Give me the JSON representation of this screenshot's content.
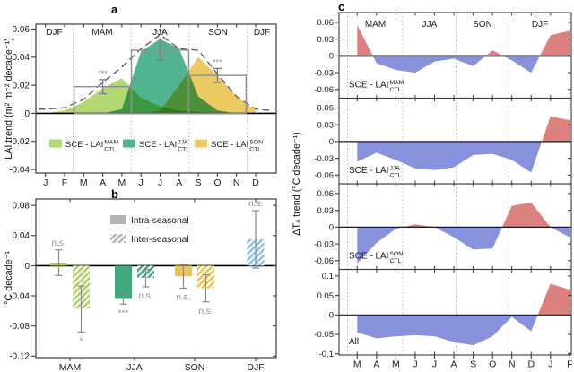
{
  "figure": {
    "panel_letters": {
      "a": "a",
      "b": "b",
      "c": "c"
    },
    "colors": {
      "green": "#a9d25e",
      "teal": "#3fa97c",
      "yellow": "#edc34c",
      "blue": "#90c0ea",
      "area_green": "#b4d871",
      "area_teal": "#51b490",
      "area_yellow": "#eaca61",
      "red": "#dc817e",
      "periwinkle": "#8791dc"
    }
  },
  "chart_data": [
    {
      "panel": "a",
      "type": "area",
      "ylabel": "LAI trend (m² m⁻² decade⁻¹)",
      "x_tick_labels": [
        "J",
        "F",
        "M",
        "A",
        "M",
        "J",
        "J",
        "A",
        "S",
        "O",
        "N",
        "D"
      ],
      "season_labels": [
        "DJF",
        "MAM",
        "JJA",
        "SON",
        "DJF"
      ],
      "yticks": [
        -0.04,
        -0.02,
        0,
        0.02,
        0.04,
        0.06
      ],
      "ylim": [
        -0.0425,
        0.0635
      ],
      "dashed_series": {
        "name": "monthly LAI trend",
        "values": [
          0.003,
          0.004,
          0.01,
          0.022,
          0.033,
          0.046,
          0.056,
          0.046,
          0.045,
          0.028,
          0.012,
          0.003
        ]
      },
      "areas": [
        {
          "legend": {
            "prefix": "SCE - LAI",
            "sup": "MAM",
            "sub": "CTL"
          },
          "color_key": "area_green",
          "values": [
            0,
            0.002,
            0.008,
            0.018,
            0.025,
            0.011,
            0.005,
            0.002,
            0.001,
            0,
            0,
            0
          ]
        },
        {
          "legend": {
            "prefix": "SCE - LAI",
            "sup": "JJA",
            "sub": "CTL"
          },
          "color_key": "area_teal",
          "values": [
            0,
            0,
            0,
            0,
            0.003,
            0.044,
            0.053,
            0.046,
            0.012,
            0.002,
            0,
            0
          ]
        },
        {
          "legend": {
            "prefix": "SCE - LAI",
            "sup": "SON",
            "sub": "CTL"
          },
          "color_key": "area_yellow",
          "values": [
            0,
            0,
            0,
            0,
            0,
            0,
            0.002,
            0.02,
            0.04,
            0.027,
            0.012,
            0.002
          ]
        }
      ],
      "bars": [
        {
          "season": "MAM",
          "month_span": [
            2,
            4
          ],
          "value": 0.019,
          "err": [
            0.014,
            0.024
          ],
          "sig": "***"
        },
        {
          "season": "JJA",
          "month_span": [
            5,
            7
          ],
          "value": 0.045,
          "err": [
            0.038,
            0.053
          ],
          "sig": "***"
        },
        {
          "season": "SON",
          "month_span": [
            8,
            10
          ],
          "value": 0.027,
          "err": [
            0.022,
            0.032
          ],
          "sig": "***"
        }
      ]
    },
    {
      "panel": "b",
      "type": "bar",
      "ylabel": "°C decade⁻¹",
      "categories": [
        "MAM",
        "JJA",
        "SON",
        "DJF"
      ],
      "yticks": [
        -0.12,
        -0.08,
        -0.04,
        0,
        0.04,
        0.08
      ],
      "ylim": [
        -0.122,
        0.0885
      ],
      "legend": [
        {
          "label": "Intra-seasonal",
          "hatched": false
        },
        {
          "label": "Inter-seasonal",
          "hatched": true
        }
      ],
      "bars": [
        {
          "category": "MAM",
          "type": "intra",
          "color_key": "green",
          "value": 0.004,
          "err": [
            -0.013,
            0.021
          ],
          "sig": "n.s.",
          "sig_side": "above"
        },
        {
          "category": "MAM",
          "type": "inter",
          "color_key": "green",
          "value": -0.057,
          "err": [
            -0.088,
            -0.027
          ],
          "sig": "*",
          "sig_side": "below"
        },
        {
          "category": "JJA",
          "type": "intra",
          "color_key": "teal",
          "value": -0.044,
          "err": [
            -0.051,
            -0.036
          ],
          "sig": "***",
          "sig_side": "below"
        },
        {
          "category": "JJA",
          "type": "inter",
          "color_key": "teal",
          "value": -0.016,
          "err": [
            -0.028,
            -0.005
          ],
          "sig": "n.s.",
          "sig_side": "below"
        },
        {
          "category": "SON",
          "type": "intra",
          "color_key": "yellow",
          "value": -0.014,
          "err": [
            -0.03,
            0.002
          ],
          "sig": "n.s.",
          "sig_side": "below"
        },
        {
          "category": "SON",
          "type": "inter",
          "color_key": "yellow",
          "value": -0.03,
          "err": [
            -0.048,
            -0.012
          ],
          "sig": "n.s.",
          "sig_side": "below"
        },
        {
          "category": "DJF",
          "type": "inter",
          "color_key": "blue",
          "value": 0.035,
          "err": [
            -0.003,
            0.073
          ],
          "sig": "n.s.",
          "sig_side": "above"
        }
      ]
    },
    {
      "panel": "c",
      "type": "area",
      "ylabel": "ΔTₐ trend (°C decade⁻¹)",
      "x_tick_labels": [
        "M",
        "A",
        "M",
        "J",
        "J",
        "A",
        "S",
        "O",
        "N",
        "D",
        "J",
        "F"
      ],
      "season_labels": [
        "MAM",
        "JJA",
        "SON",
        "DJF"
      ],
      "subpanels": [
        {
          "label": {
            "prefix": "SCE - LAI",
            "sup": "MAM",
            "sub": "CTL"
          },
          "yticks": [
            0.06,
            0.03,
            0,
            -0.03,
            -0.06
          ],
          "ylim": [
            -0.0755,
            0.0775
          ],
          "values": [
            0.055,
            -0.013,
            -0.025,
            -0.03,
            -0.01,
            -0.005,
            -0.018,
            0.01,
            -0.008,
            -0.03,
            0.037,
            0.045
          ]
        },
        {
          "label": {
            "prefix": "SCE - LAI",
            "sup": "JJA",
            "sub": "CTL"
          },
          "yticks": [
            0.06,
            0.03,
            0,
            -0.03,
            -0.06
          ],
          "ylim": [
            -0.0755,
            0.0775
          ],
          "values": [
            -0.036,
            -0.02,
            -0.033,
            -0.048,
            -0.051,
            -0.046,
            -0.024,
            -0.022,
            -0.033,
            -0.055,
            0.045,
            0.038
          ]
        },
        {
          "label": {
            "prefix": "SCE - LAI",
            "sup": "SON",
            "sub": "CTL"
          },
          "yticks": [
            0.06,
            0.03,
            0,
            -0.03,
            -0.06
          ],
          "ylim": [
            -0.0755,
            0.0775
          ],
          "values": [
            -0.065,
            -0.028,
            -0.003,
            0.005,
            0.0,
            -0.018,
            -0.04,
            -0.038,
            0.038,
            0.044,
            0.0,
            -0.018
          ]
        },
        {
          "label": {
            "prefix": "All"
          },
          "yticks": [
            0.1,
            0.05,
            0,
            -0.05,
            -0.1
          ],
          "ylim": [
            -0.103,
            0.117
          ],
          "values": [
            -0.045,
            -0.06,
            -0.055,
            -0.052,
            -0.055,
            -0.07,
            -0.078,
            -0.055,
            -0.005,
            -0.042,
            0.08,
            0.065
          ]
        }
      ]
    }
  ]
}
